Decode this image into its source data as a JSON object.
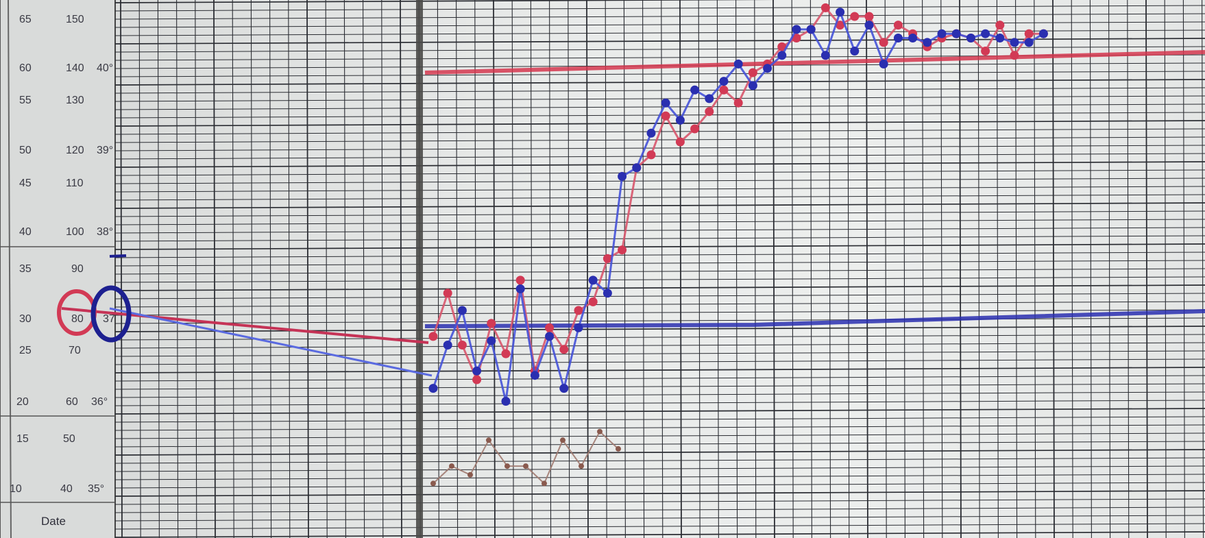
{
  "scale_labels": {
    "respiration": [
      "65",
      "60",
      "55",
      "50",
      "45",
      "40",
      "35",
      "30",
      "25",
      "20",
      "15",
      "10"
    ],
    "pulse": [
      "150",
      "140",
      "130",
      "120",
      "110",
      "100",
      "90",
      "80",
      "70",
      "60",
      "50",
      "40"
    ],
    "temperature": [
      "40°",
      "39°",
      "38°",
      "37",
      "36°",
      "35°"
    ]
  },
  "date_label": "Date",
  "colors": {
    "paper": "#e6e8e7",
    "grid": "#2b2d33",
    "red_ink": "#d23a55",
    "blue_ink": "#2a2fb0",
    "brown_ink": "#8a5a4e",
    "divider": "#4a4a48"
  },
  "chart_data": {
    "type": "line",
    "title": "",
    "ylabel": "",
    "xlabel": "Date",
    "y_scales": {
      "respiration": [
        10,
        65
      ],
      "pulse": [
        40,
        150
      ],
      "temperature": [
        35,
        40
      ]
    },
    "grid": true,
    "series": [
      {
        "color": "red",
        "scale": "pulse",
        "values": [
          76,
          86,
          74,
          66,
          79,
          72,
          89,
          68,
          78,
          73,
          82,
          84,
          94,
          96,
          115,
          118,
          127,
          121,
          124,
          128,
          133,
          130,
          137,
          139,
          143,
          145,
          147,
          152,
          148,
          150,
          150,
          144,
          148,
          146,
          143,
          145,
          146,
          145,
          142,
          148,
          141,
          146,
          146
        ]
      },
      {
        "color": "blue",
        "scale": "pulse",
        "values": [
          64,
          74,
          82,
          68,
          75,
          61,
          87,
          67,
          76,
          64,
          78,
          89,
          86,
          113,
          115,
          123,
          130,
          126,
          133,
          131,
          135,
          139,
          134,
          138,
          141,
          147,
          147,
          141,
          151,
          142,
          148,
          139,
          145,
          145,
          144,
          146,
          146,
          145,
          146,
          145,
          144,
          144,
          146
        ]
      },
      {
        "color": "brown",
        "scale": "respiration",
        "values": [
          11,
          13,
          12,
          16,
          13,
          13,
          11,
          16,
          13,
          17,
          15
        ]
      }
    ],
    "reference_lines": [
      {
        "color": "red",
        "value_pulse": 140
      },
      {
        "color": "blue",
        "value_temperature": 37
      }
    ]
  }
}
